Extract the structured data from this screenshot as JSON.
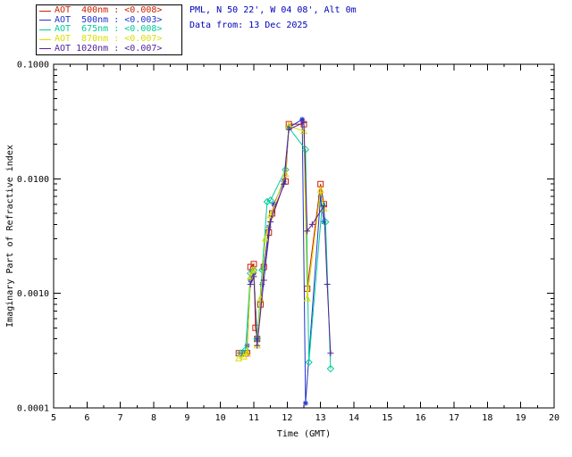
{
  "header": {
    "station_line": "PML, N 50 22', W 04 08', Alt 0m",
    "date_line": "Data from: 13 Dec 2025",
    "text_color": "#0000BB"
  },
  "legend": {
    "items": [
      {
        "label": "AOT  400nm : <0.008>",
        "color": "#CC2200"
      },
      {
        "label": "AOT  500nm : <0.003>",
        "color": "#2233CC"
      },
      {
        "label": "AOT  675nm : <0.008>",
        "color": "#00CC99"
      },
      {
        "label": "AOT  870nm : <0.007>",
        "color": "#DDDD00"
      },
      {
        "label": "AOT 1020nm : <0.007>",
        "color": "#552299"
      }
    ]
  },
  "chart_data": {
    "type": "line",
    "title": "",
    "xlabel": "Time (GMT)",
    "ylabel": "Imaginary Part of Refractive index",
    "xlim": [
      5,
      20
    ],
    "ylim": [
      0.0001,
      0.1
    ],
    "yscale": "log",
    "grid": false,
    "legend_position": "outside-top-left",
    "x_ticks": [
      5,
      6,
      7,
      8,
      9,
      10,
      11,
      12,
      13,
      14,
      15,
      16,
      17,
      18,
      19,
      20
    ],
    "y_ticks": [
      0.0001,
      0.001,
      0.01,
      0.1
    ],
    "y_tick_labels": [
      "0.0001",
      "0.0010",
      "0.0100",
      "0.1000"
    ],
    "series": [
      {
        "id": "400nm",
        "name": "AOT 400nm",
        "color": "#CC2200",
        "marker": "square",
        "x": [
          10.55,
          10.65,
          10.75,
          10.8,
          10.9,
          11.0,
          11.05,
          11.1,
          11.2,
          11.3,
          11.45,
          11.55,
          11.95,
          12.05,
          12.5,
          12.6,
          13.0,
          13.1
        ],
        "y": [
          0.0003,
          0.0003,
          0.0003,
          0.0003,
          0.0017,
          0.0018,
          0.0005,
          0.0004,
          0.0008,
          0.0017,
          0.0034,
          0.005,
          0.0095,
          0.03,
          0.03,
          0.0011,
          0.009,
          0.006
        ]
      },
      {
        "id": "500nm",
        "name": "AOT 500nm",
        "color": "#2233CC",
        "marker": "asterisk",
        "x": [
          10.8,
          10.9,
          11.0,
          11.1,
          11.25,
          11.45,
          11.6,
          11.9,
          12.05,
          12.45,
          12.55,
          13.0,
          13.1
        ],
        "y": [
          0.00035,
          0.0013,
          0.0015,
          0.0004,
          0.0012,
          0.0038,
          0.006,
          0.0095,
          0.028,
          0.033,
          0.00011,
          0.007,
          0.0042
        ]
      },
      {
        "id": "675nm",
        "name": "AOT 675nm",
        "color": "#00CC99",
        "marker": "diamond",
        "x": [
          10.6,
          10.75,
          10.9,
          11.0,
          11.1,
          11.25,
          11.4,
          11.5,
          11.95,
          12.05,
          12.55,
          12.65,
          13.05,
          13.15,
          13.3
        ],
        "y": [
          0.0003,
          0.00032,
          0.0015,
          0.0016,
          0.0004,
          0.0016,
          0.0063,
          0.0065,
          0.012,
          0.028,
          0.018,
          0.00025,
          0.006,
          0.0042,
          0.00022
        ]
      },
      {
        "id": "870nm",
        "name": "AOT 870nm",
        "color": "#DDDD00",
        "marker": "triangle",
        "x": [
          10.55,
          10.7,
          10.8,
          10.9,
          11.0,
          11.1,
          11.2,
          11.35,
          11.5,
          11.95,
          12.05,
          12.5,
          12.6,
          13.0,
          13.1
        ],
        "y": [
          0.00027,
          0.00028,
          0.0003,
          0.0014,
          0.0016,
          0.00035,
          0.0009,
          0.003,
          0.0048,
          0.011,
          0.029,
          0.026,
          0.0009,
          0.008,
          0.0055
        ]
      },
      {
        "id": "1020nm",
        "name": "AOT 1020nm",
        "color": "#552299",
        "marker": "plus",
        "x": [
          10.9,
          11.0,
          11.1,
          11.3,
          11.5,
          11.9,
          12.05,
          12.5,
          12.6,
          12.75,
          13.1,
          13.2,
          13.3
        ],
        "y": [
          0.0012,
          0.0014,
          0.00035,
          0.0013,
          0.0042,
          0.009,
          0.027,
          0.031,
          0.0035,
          0.004,
          0.0058,
          0.0012,
          0.0003
        ]
      }
    ]
  }
}
